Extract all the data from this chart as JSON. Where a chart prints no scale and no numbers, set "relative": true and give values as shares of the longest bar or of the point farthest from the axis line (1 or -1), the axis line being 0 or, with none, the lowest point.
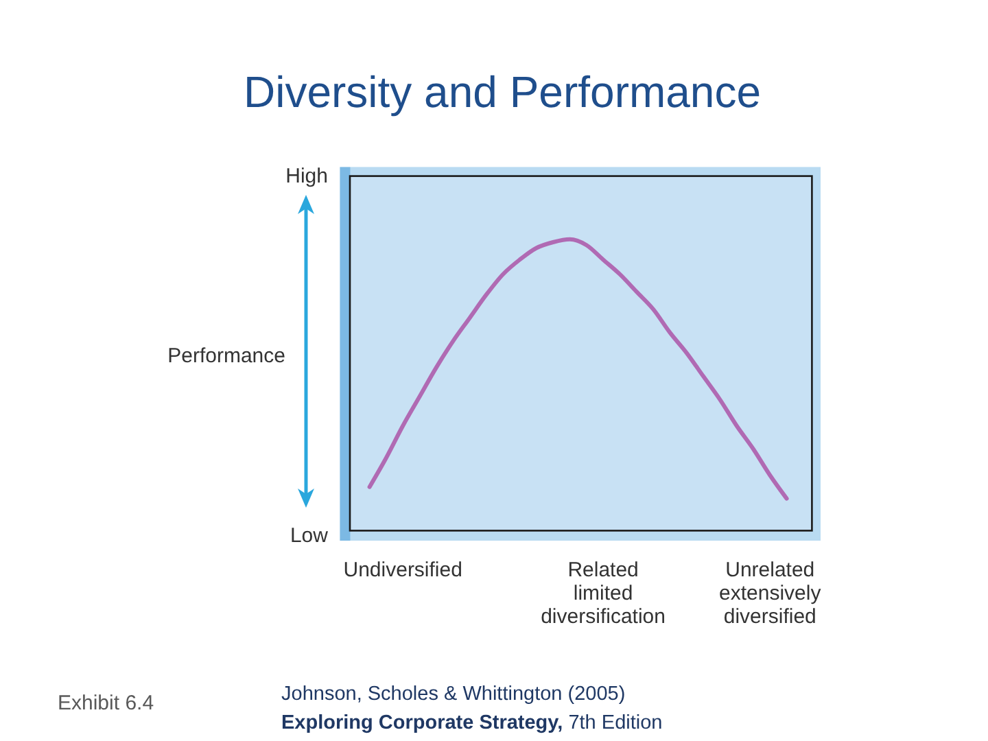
{
  "chart_data": {
    "type": "line",
    "title": "Diversity and Performance",
    "ylabel": "Performance",
    "relative": true,
    "categories": [
      null,
      null,
      "Undiversified",
      null,
      null,
      null,
      null,
      null,
      null,
      null,
      null,
      null,
      null,
      null,
      "Related limited diversification",
      null,
      null,
      null,
      null,
      null,
      null,
      null,
      null,
      null,
      "Unrelated extensively diversified",
      null
    ],
    "values": [
      0.15,
      0.25,
      0.36,
      0.46,
      0.56,
      0.65,
      0.73,
      0.81,
      0.88,
      0.93,
      0.97,
      0.99,
      1,
      0.98,
      0.93,
      0.88,
      0.82,
      0.76,
      0.68,
      0.61,
      0.53,
      0.45,
      0.36,
      0.28,
      0.19,
      0.11
    ],
    "color": "#b06ab3",
    "annotations": [
      "High",
      "Low",
      "Exhibit 6.4",
      "Johnson, Scholes & Whittington (2005)",
      "Exploring Corporate Strategy, 7th Edition"
    ]
  }
}
